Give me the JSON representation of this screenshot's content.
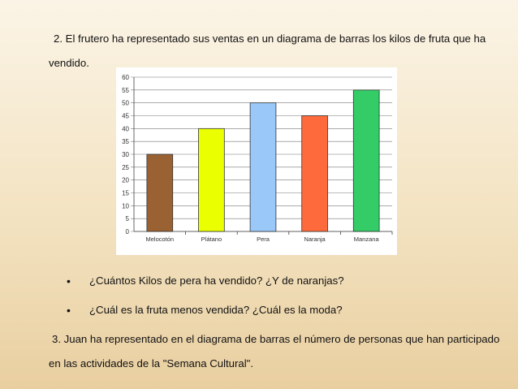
{
  "paragraphs": {
    "p1": "2. El frutero ha representado sus ventas en un diagrama de barras los kilos de fruta que ha vendido.",
    "p3": "3. Juan ha representado en el diagrama de barras el número de personas que han participado en las actividades de la \"Semana Cultural\"."
  },
  "bullets": [
    "¿Cuántos Kilos de pera ha vendido? ¿Y de naranjas?",
    "¿Cuál es la fruta menos vendida? ¿Cuál es la moda?"
  ],
  "bullet_glyph": "•",
  "chart_data": {
    "type": "bar",
    "categories": [
      "Melocotón",
      "Plátano",
      "Pera",
      "Naranja",
      "Manzana"
    ],
    "values": [
      30,
      40,
      50,
      45,
      55
    ],
    "colors": [
      "#9a6232",
      "#eaff00",
      "#9ac8f8",
      "#ff6a3c",
      "#33cc66"
    ],
    "ylim": [
      0,
      60
    ],
    "yticks": [
      "0",
      "5",
      "10",
      "15",
      "20",
      "25",
      "30",
      "35",
      "40",
      "45",
      "50",
      "55",
      "60"
    ],
    "grid": true,
    "title": "",
    "xlabel": "",
    "ylabel": ""
  }
}
